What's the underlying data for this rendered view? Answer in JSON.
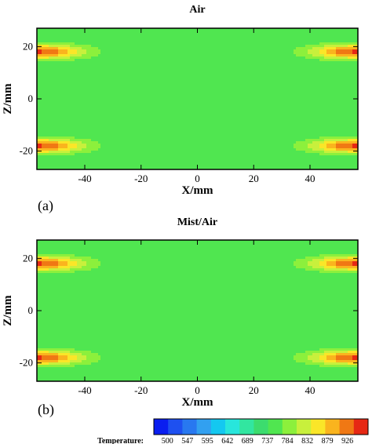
{
  "chart_data": [
    {
      "type": "heatmap",
      "panel_label": "(a)",
      "title": "Air",
      "xlabel": "X/mm",
      "ylabel": "Z/mm",
      "xlim": [
        -57,
        57
      ],
      "ylim": [
        -27,
        27
      ],
      "xticks": [
        -40,
        -20,
        0,
        20,
        40
      ],
      "yticks": [
        -20,
        0,
        20
      ],
      "sources": [
        {
          "x": -56,
          "z": 18,
          "peak": 932,
          "sx": 15,
          "sz": 2.6
        },
        {
          "x": -56,
          "z": -18,
          "peak": 932,
          "sx": 15,
          "sz": 2.6
        },
        {
          "x": 56,
          "z": 18,
          "peak": 932,
          "sx": 15,
          "sz": 2.6
        },
        {
          "x": 56,
          "z": -18,
          "peak": 932,
          "sx": 15,
          "sz": 2.6
        }
      ],
      "min_temperature": 500,
      "edge_temperature": 740
    },
    {
      "type": "heatmap",
      "panel_label": "(b)",
      "title": "Mist/Air",
      "xlabel": "X/mm",
      "ylabel": "Z/mm",
      "xlim": [
        -57,
        57
      ],
      "ylim": [
        -27,
        27
      ],
      "xticks": [
        -40,
        -20,
        0,
        20,
        40
      ],
      "yticks": [
        -20,
        0,
        20
      ],
      "sources": [
        {
          "x": -56,
          "z": 18,
          "peak": 932,
          "sx": 15,
          "sz": 2.6
        },
        {
          "x": -56,
          "z": -18,
          "peak": 932,
          "sx": 15,
          "sz": 2.6
        },
        {
          "x": 56,
          "z": 18,
          "peak": 932,
          "sx": 15,
          "sz": 2.6
        },
        {
          "x": 56,
          "z": -18,
          "peak": 932,
          "sx": 15,
          "sz": 2.6
        }
      ],
      "min_temperature": 475,
      "edge_temperature": 740
    }
  ],
  "colorbar": {
    "title": "Temperature:",
    "ticks": [
      500,
      547,
      595,
      642,
      689,
      737,
      784,
      832,
      879,
      926
    ],
    "colors": [
      "#0a1ef0",
      "#1e50f0",
      "#2878f0",
      "#32a0f0",
      "#14c8f0",
      "#28e6dc",
      "#32e6a0",
      "#3cdc6e",
      "#50e650",
      "#8cf03c",
      "#c8f03c",
      "#fae628",
      "#fab41e",
      "#f07814",
      "#e62814"
    ]
  }
}
